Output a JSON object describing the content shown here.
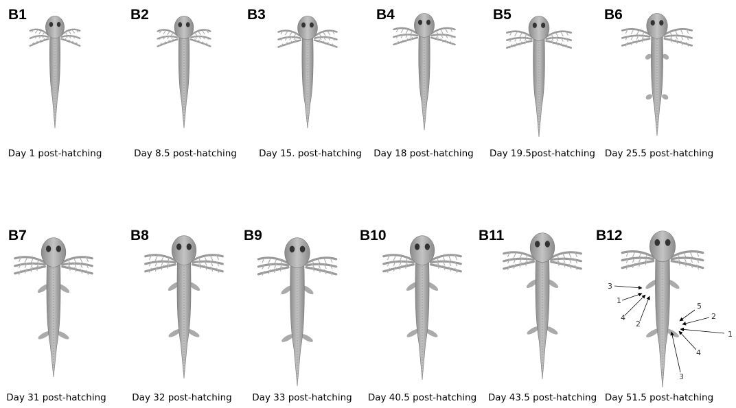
{
  "panels": [
    {
      "label": "B1",
      "caption": "Day 1 post-hatching"
    },
    {
      "label": "B2",
      "caption": "Day 8.5 post-hatching"
    },
    {
      "label": "B3",
      "caption": "Day 15. post-hatching"
    },
    {
      "label": "B4",
      "caption": "Day 18 post-hatching"
    },
    {
      "label": "B5",
      "caption": "Day 19.5post-hatching"
    },
    {
      "label": "B6",
      "caption": "Day 25.5 post-hatching"
    },
    {
      "label": "B7",
      "caption": "Day 31 post-hatching"
    },
    {
      "label": "B8",
      "caption": "Day 32 post-hatching"
    },
    {
      "label": "B9",
      "caption": "Day 33 post-hatching"
    },
    {
      "label": "B10",
      "caption": "Day 40.5 post-hatching"
    },
    {
      "label": "B11",
      "caption": "Day 43.5 post-hatching"
    },
    {
      "label": "B12",
      "caption": "Day 51.5 post-hatching",
      "annotations": [
        "3",
        "1",
        "4",
        "2",
        "5",
        "2",
        "1",
        "4",
        "3"
      ]
    }
  ]
}
